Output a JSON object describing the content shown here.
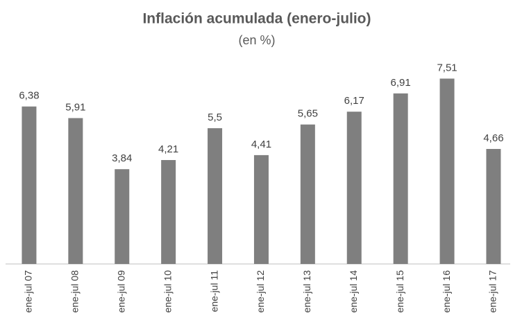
{
  "chart_data": {
    "type": "bar",
    "title": "Inflación acumulada (enero-julio)",
    "subtitle": "(en %)",
    "categories": [
      "ene-jul 07",
      "ene-jul 08",
      "ene-jul 09",
      "ene-jul 10",
      "ene-jul 11",
      "ene-jul 12",
      "ene-jul 13",
      "ene-jul 14",
      "ene-jul 15",
      "ene-jul 16",
      "ene-jul 17"
    ],
    "values": [
      6.38,
      5.91,
      3.84,
      4.21,
      5.5,
      4.41,
      5.65,
      6.17,
      6.91,
      7.51,
      4.66
    ],
    "value_labels": [
      "6,38",
      "5,91",
      "3,84",
      "4,21",
      "5,5",
      "4,41",
      "5,65",
      "6,17",
      "6,91",
      "7,51",
      "4,66"
    ],
    "color": "#7f7f7f",
    "ylim": [
      0,
      8
    ]
  }
}
